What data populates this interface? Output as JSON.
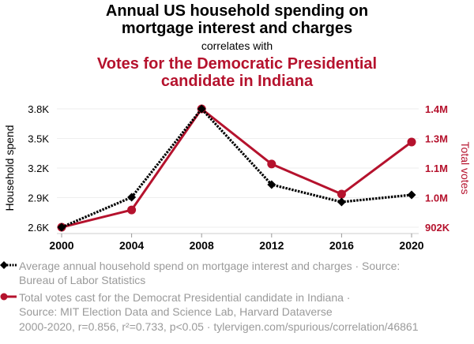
{
  "header": {
    "title": "Annual US household spending on mortgage interest and charges",
    "title_line1": "Annual US household spending on",
    "title_line2": "mortgage interest and charges",
    "connector": "correlates with",
    "subtitle_line1": "Votes for the Democratic Presidential",
    "subtitle_line2": "candidate in Indiana"
  },
  "colors": {
    "series1": "#000000",
    "series2": "#b5122d",
    "grid": "#eeeeee",
    "muted_text": "#9a9a9a"
  },
  "chart_data": {
    "type": "line",
    "title": "Annual US household spending on mortgage interest and charges correlates with Votes for the Democratic Presidential candidate in Indiana",
    "x": [
      2000,
      2004,
      2008,
      2012,
      2016,
      2020
    ],
    "x_tick_labels": [
      "2000",
      "2004",
      "2008",
      "2012",
      "2016",
      "2020"
    ],
    "xlabel": "",
    "grid": true,
    "legend_placement": "bottom",
    "y_left": {
      "label": "Household spend",
      "range": [
        2600,
        3800
      ],
      "tick_values": [
        2600,
        2900,
        3200,
        3500,
        3800
      ],
      "tick_labels": [
        "2.6K",
        "2.9K",
        "3.2K",
        "3.5K",
        "3.8K"
      ]
    },
    "y_right": {
      "label": "Total votes",
      "range": [
        902000,
        1374000
      ],
      "tick_values": [
        902000,
        1020000,
        1138000,
        1256000,
        1374000
      ],
      "tick_labels": [
        "902K",
        "1.0M",
        "1.1M",
        "1.3M",
        "1.4M"
      ]
    },
    "series": [
      {
        "name": "Average annual household spend on mortgage interest and charges",
        "axis": "left",
        "style": "dotted",
        "marker": "diamond",
        "color": "#000000",
        "values": [
          2600,
          2904,
          3800,
          3032,
          2856,
          2928
        ]
      },
      {
        "name": "Total votes cast for the Democrat Presidential candidate in Indiana",
        "axis": "right",
        "style": "solid",
        "marker": "circle",
        "color": "#b5122d",
        "values": [
          902000,
          971000,
          1374000,
          1154000,
          1034000,
          1242000
        ]
      }
    ]
  },
  "legend": {
    "items": [
      {
        "line1": "Average annual household spend on mortgage interest and charges · Source:",
        "line2": "Bureau of Labor Statistics",
        "icon": "dotted-line-diamond-icon"
      },
      {
        "line1": "Total votes cast for the Democrat Presidential candidate in Indiana ·",
        "line2": "Source: MIT Election Data and Science Lab, Harvard Dataverse",
        "icon": "line-circle-icon"
      }
    ]
  },
  "footer": {
    "stats": "2000-2020, r=0.856, r²=0.733, p<0.05 · tylervigen.com/spurious/correlation/46861"
  }
}
